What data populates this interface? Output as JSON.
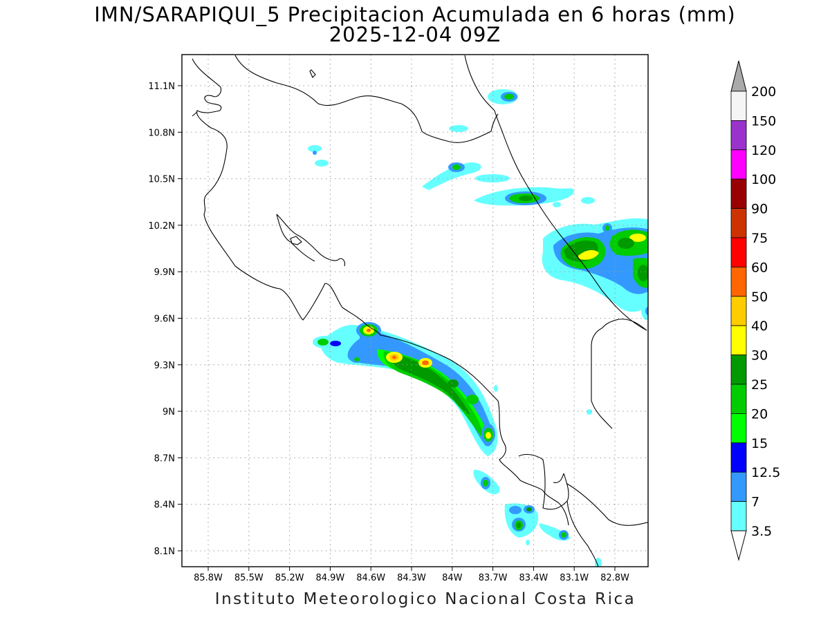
{
  "header": {
    "title": "IMN/SARAPIQUI_5 Precipitacion Acumulada en 6 horas (mm)",
    "subtitle": "2025-12-04 09Z"
  },
  "footer": {
    "credit": "Instituto Meteorologico Nacional Costa Rica"
  },
  "map": {
    "lon_range": [
      -86.0,
      -83.0
    ],
    "lat_range": [
      8.0,
      11.3
    ],
    "x_ticks": [
      "85.8W",
      "85.5W",
      "85.2W",
      "84.9W",
      "84.6W",
      "84.3W",
      "84W",
      "83.7W",
      "83.4W",
      "83.1W",
      "82.8W"
    ],
    "y_ticks": [
      "11.1N",
      "10.8N",
      "10.5N",
      "10.2N",
      "9.9N",
      "9.6N",
      "9.3N",
      "9N",
      "8.7N",
      "8.4N",
      "8.1N"
    ],
    "grid": true
  },
  "legend": {
    "placement": "right",
    "levels": [
      {
        "label": "200",
        "color": "#aaaaaa"
      },
      {
        "label": "150",
        "color": "#f5f5f5"
      },
      {
        "label": "120",
        "color": "#9933cc"
      },
      {
        "label": "100",
        "color": "#ff00ff"
      },
      {
        "label": "90",
        "color": "#990000"
      },
      {
        "label": "75",
        "color": "#cc3300"
      },
      {
        "label": "60",
        "color": "#ff0000"
      },
      {
        "label": "50",
        "color": "#ff6600"
      },
      {
        "label": "40",
        "color": "#ffcc00"
      },
      {
        "label": "30",
        "color": "#ffff00"
      },
      {
        "label": "25",
        "color": "#009900"
      },
      {
        "label": "20",
        "color": "#00cc00"
      },
      {
        "label": "15",
        "color": "#00ff00"
      },
      {
        "label": "12.5",
        "color": "#0000ff"
      },
      {
        "label": "7",
        "color": "#3399ff"
      },
      {
        "label": "3.5",
        "color": "#66ffff"
      }
    ]
  }
}
